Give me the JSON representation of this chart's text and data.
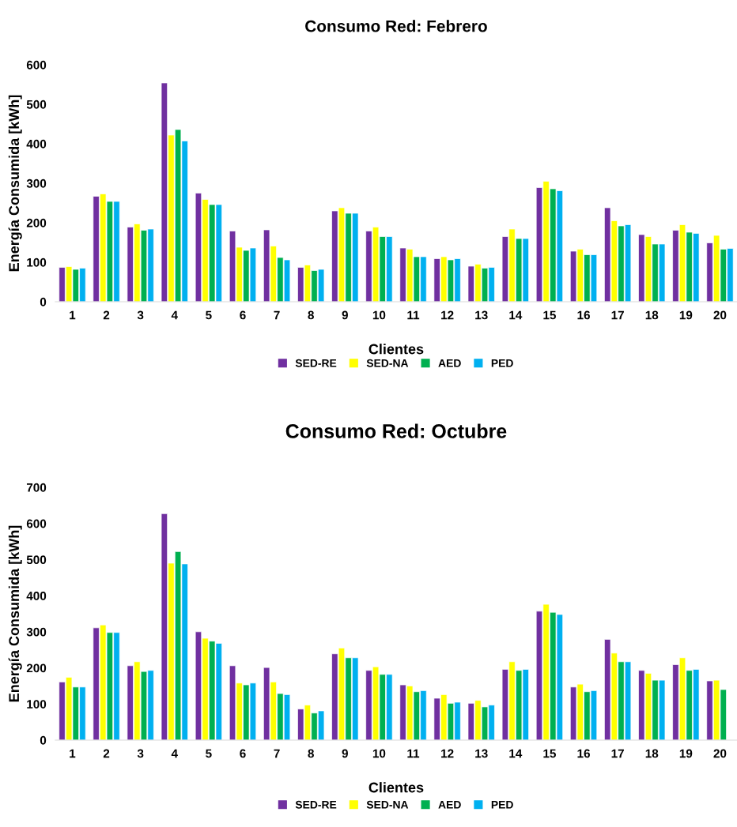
{
  "chart_data": [
    {
      "type": "bar",
      "title": "Consumo Red: Febrero",
      "xlabel": "Clientes",
      "ylabel": "Energía Consumida [kWh]",
      "categories": [
        "1",
        "2",
        "3",
        "4",
        "5",
        "6",
        "7",
        "8",
        "9",
        "10",
        "11",
        "12",
        "13",
        "14",
        "15",
        "16",
        "17",
        "18",
        "19",
        "20"
      ],
      "series": [
        {
          "name": "SED-RE",
          "color": "#7030a0",
          "values": [
            87,
            267,
            189,
            554,
            275,
            179,
            182,
            87,
            230,
            179,
            136,
            109,
            90,
            165,
            289,
            128,
            238,
            170,
            181,
            149
          ]
        },
        {
          "name": "SED-NA",
          "color": "#ffff00",
          "values": [
            89,
            273,
            197,
            422,
            259,
            138,
            141,
            93,
            238,
            189,
            133,
            114,
            95,
            184,
            305,
            133,
            205,
            165,
            195,
            168
          ]
        },
        {
          "name": "AED",
          "color": "#00b050",
          "values": [
            82,
            254,
            181,
            436,
            246,
            130,
            112,
            79,
            224,
            165,
            114,
            106,
            85,
            160,
            286,
            119,
            192,
            146,
            176,
            133
          ]
        },
        {
          "name": "PED",
          "color": "#00b0f0",
          "values": [
            85,
            254,
            184,
            407,
            246,
            136,
            106,
            82,
            224,
            165,
            114,
            109,
            87,
            160,
            281,
            119,
            195,
            146,
            173,
            135
          ]
        }
      ],
      "ylim": [
        0,
        600
      ],
      "yticks": [
        0,
        100,
        200,
        300,
        400,
        500,
        600
      ],
      "grid": false,
      "legend": "bottom"
    },
    {
      "type": "bar",
      "title": "Consumo Red: Octubre",
      "xlabel": "Clientes",
      "ylabel": "Energía Consumida [kWh]",
      "categories": [
        "1",
        "2",
        "3",
        "4",
        "5",
        "6",
        "7",
        "8",
        "9",
        "10",
        "11",
        "12",
        "13",
        "14",
        "15",
        "16",
        "17",
        "18",
        "19",
        "20"
      ],
      "series": [
        {
          "name": "SED-RE",
          "color": "#7030a0",
          "values": [
            161,
            311,
            206,
            627,
            300,
            206,
            201,
            86,
            239,
            193,
            153,
            116,
            102,
            196,
            357,
            147,
            279,
            193,
            209,
            164
          ]
        },
        {
          "name": "SED-NA",
          "color": "#ffff00",
          "values": [
            174,
            319,
            217,
            490,
            282,
            158,
            161,
            97,
            255,
            203,
            150,
            126,
            110,
            217,
            376,
            155,
            241,
            185,
            228,
            166
          ]
        },
        {
          "name": "AED",
          "color": "#00b050",
          "values": [
            147,
            298,
            190,
            522,
            274,
            153,
            129,
            75,
            228,
            182,
            134,
            102,
            92,
            193,
            354,
            134,
            217,
            166,
            193,
            140
          ]
        },
        {
          "name": "PED",
          "color": "#00b0f0",
          "values": [
            147,
            298,
            193,
            488,
            268,
            158,
            126,
            81,
            228,
            182,
            137,
            105,
            97,
            196,
            348,
            137,
            217,
            166,
            196,
            null
          ]
        }
      ],
      "ylim": [
        0,
        700
      ],
      "yticks": [
        0,
        100,
        200,
        300,
        400,
        500,
        600,
        700
      ],
      "grid": false,
      "legend": "bottom"
    }
  ]
}
